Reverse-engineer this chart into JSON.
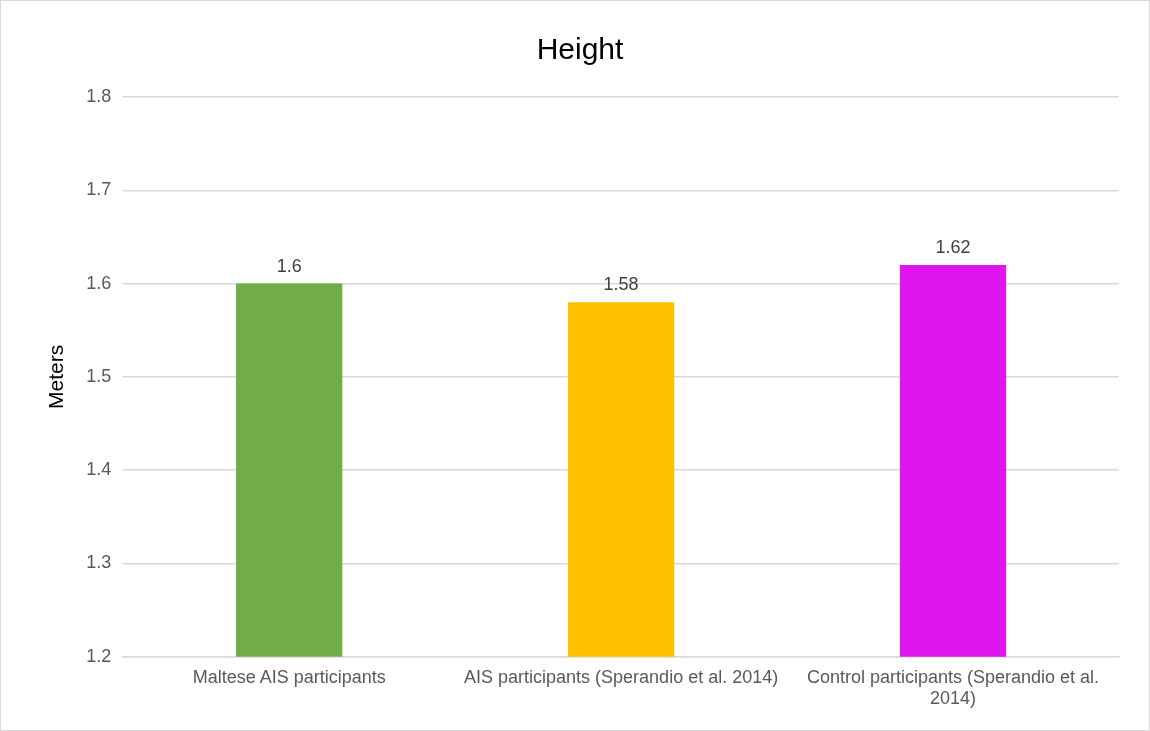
{
  "chart_data": {
    "type": "bar",
    "title": "Height",
    "ylabel": "Meters",
    "categories": [
      "Maltese AIS participants",
      "AIS participants (Sperandio et al. 2014)",
      "Control participants (Sperandio et al. 2014)"
    ],
    "values": [
      1.6,
      1.58,
      1.62
    ],
    "colors": [
      "#70ad47",
      "#ffc000",
      "#e014ec"
    ],
    "ylim": [
      1.2,
      1.8
    ],
    "yticks": [
      1.2,
      1.3,
      1.4,
      1.5,
      1.6,
      1.7,
      1.8
    ],
    "grid": "y",
    "legend": false,
    "data_labels": true
  }
}
